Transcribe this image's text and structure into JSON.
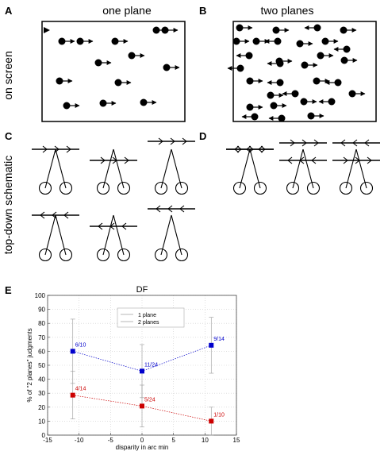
{
  "panels": {
    "A": {
      "letter": "A",
      "title": "one plane"
    },
    "B": {
      "letter": "B",
      "title": "two planes"
    },
    "C": {
      "letter": "C"
    },
    "D": {
      "letter": "D"
    },
    "E": {
      "letter": "E"
    }
  },
  "side_labels": {
    "on_screen": "on screen",
    "top_down": "top-down schematic"
  },
  "chart_data": {
    "type": "line",
    "title": "DF",
    "xlabel": "disparity in arc min",
    "ylabel": "% of \"2 planes\" judgments",
    "xlim": [
      -15,
      15
    ],
    "ylim": [
      0,
      100
    ],
    "xticks": [
      -15,
      -10,
      -5,
      0,
      5,
      10,
      15
    ],
    "yticks": [
      0,
      10,
      20,
      30,
      40,
      50,
      60,
      70,
      80,
      90,
      100
    ],
    "grid": true,
    "legend_position": "top-center",
    "series": [
      {
        "name": "1 plane",
        "color": "#cc0000",
        "x": [
          -11,
          0,
          11
        ],
        "y": [
          28.6,
          20.8,
          10
        ],
        "err": [
          17,
          15,
          10
        ],
        "labels": [
          "4/14",
          "5/24",
          "1/10"
        ]
      },
      {
        "name": "2 planes",
        "color": "#0000cc",
        "x": [
          -11,
          0,
          11
        ],
        "y": [
          60,
          45.8,
          64.3
        ],
        "err": [
          23,
          19,
          20
        ],
        "labels": [
          "6/10",
          "11/24",
          "9/14"
        ]
      }
    ]
  }
}
